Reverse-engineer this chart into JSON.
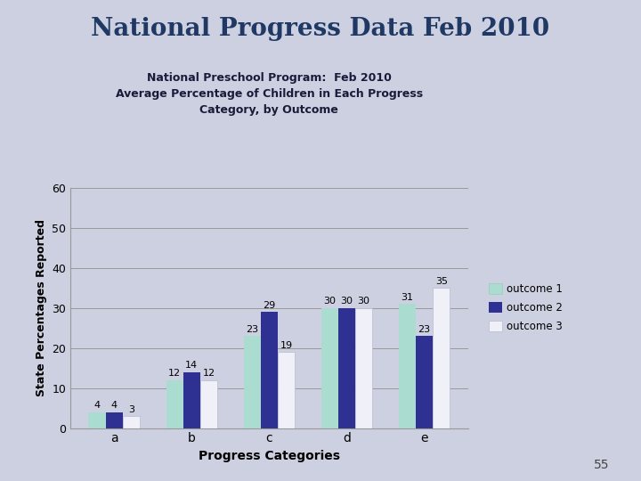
{
  "title_main": "National Progress Data Feb 2010",
  "subtitle": "National Preschool Program:  Feb 2010\nAverage Percentage of Children in Each Progress\nCategory, by Outcome",
  "categories": [
    "a",
    "b",
    "c",
    "d",
    "e"
  ],
  "outcome1": [
    4,
    12,
    23,
    30,
    31
  ],
  "outcome2": [
    4,
    14,
    29,
    30,
    23
  ],
  "outcome3": [
    3,
    12,
    19,
    30,
    35
  ],
  "color_outcome1": "#aaddd0",
  "color_outcome2": "#2e3191",
  "color_outcome3": "#f0f0f8",
  "xlabel": "Progress Categories",
  "ylabel": "State Percentages Reported",
  "ylim": [
    0,
    60
  ],
  "yticks": [
    0,
    10,
    20,
    30,
    40,
    50,
    60
  ],
  "legend_labels": [
    "outcome 1",
    "outcome 2",
    "outcome 3"
  ],
  "background_color": "#cdd0e0",
  "title_color": "#1f3864",
  "subtitle_color": "#1a1a3a",
  "page_number": "55",
  "bar_width": 0.22
}
